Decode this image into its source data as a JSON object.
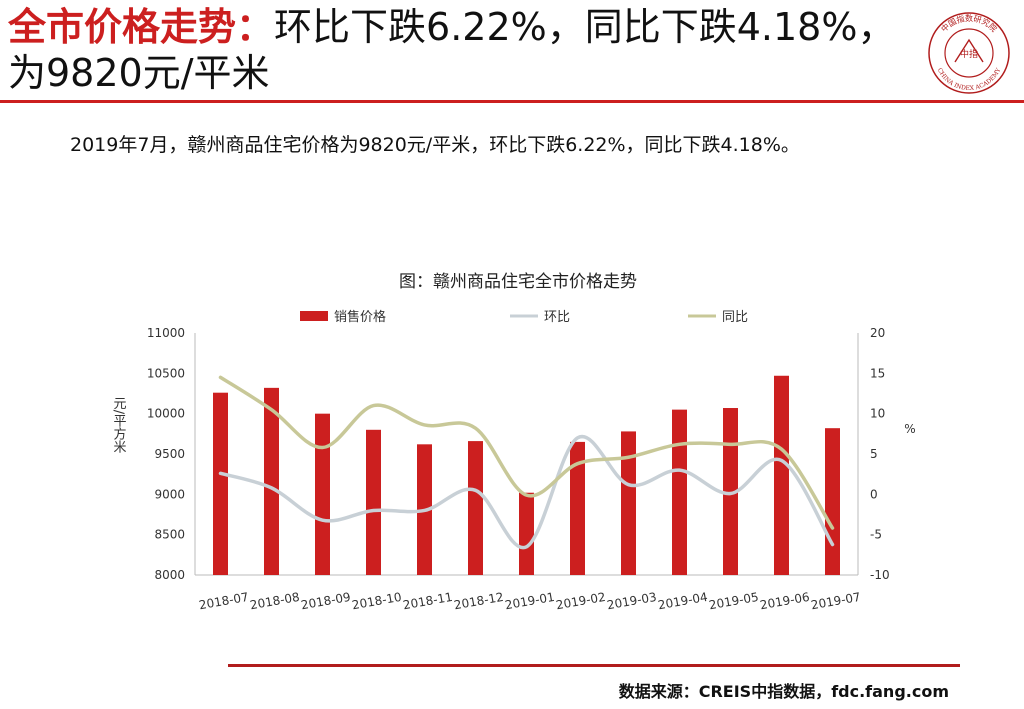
{
  "headline": {
    "prefix": "全市价格走势：",
    "text": "环比下跌6.22%，同比下跌4.18%，为9820元/平米"
  },
  "logo": {
    "top_text": "中国指数研究院",
    "center_text": "中指",
    "bottom_text": "CHINA INDEX ACADEMY",
    "color": "#b11d1d"
  },
  "summary": "2019年7月，赣州商品住宅价格为9820元/平米，环比下跌6.22%，同比下跌4.18%。",
  "chart_data": {
    "type": "bar",
    "title": "图：赣州商品住宅全市价格走势",
    "categories": [
      "2018-07",
      "2018-08",
      "2018-09",
      "2018-10",
      "2018-11",
      "2018-12",
      "2019-01",
      "2019-02",
      "2019-03",
      "2019-04",
      "2019-05",
      "2019-06",
      "2019-07"
    ],
    "series": [
      {
        "name": "销售价格",
        "kind": "bar",
        "axis": "left",
        "color": "#cc1f1f",
        "values": [
          10260,
          10320,
          10000,
          9800,
          9620,
          9660,
          9020,
          9650,
          9780,
          10050,
          10070,
          10470,
          9820
        ]
      },
      {
        "name": "环比",
        "kind": "line",
        "axis": "right",
        "color": "#c8d0d6",
        "values": [
          2.6,
          0.8,
          -3.2,
          -2.0,
          -2.0,
          0.5,
          -6.5,
          7.0,
          1.2,
          3.0,
          0.1,
          4.2,
          -6.22
        ]
      },
      {
        "name": "同比",
        "kind": "line",
        "axis": "right",
        "color": "#c8c898",
        "values": [
          14.5,
          10.5,
          5.8,
          11.0,
          8.6,
          8.2,
          -0.1,
          3.8,
          4.6,
          6.2,
          6.2,
          5.6,
          -4.18
        ]
      }
    ],
    "ylabel": "元/平方米",
    "y2label": "%",
    "ylim": [
      8000,
      11000
    ],
    "y_ticks": [
      8000,
      8500,
      9000,
      9500,
      10000,
      10500,
      11000
    ],
    "y2lim": [
      -10,
      20
    ],
    "y2_ticks": [
      -10,
      -5,
      0,
      5,
      10,
      15,
      20
    ],
    "legend_position": "top",
    "grid": false
  },
  "source": "数据来源：CREIS中指数据，fdc.fang.com"
}
